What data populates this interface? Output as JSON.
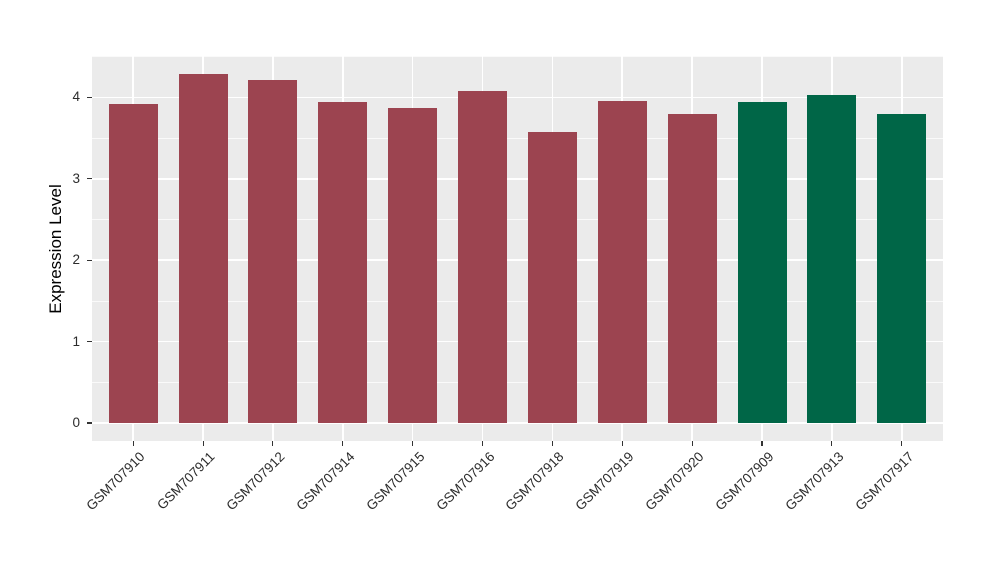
{
  "chart": {
    "ylabel": "Expression Level",
    "panel_bg": "#EBEBEB",
    "grid_color": "#FFFFFF",
    "tick_color": "#333333",
    "axis_text_color": "#2b2b2b"
  },
  "chart_data": {
    "type": "bar",
    "title": "",
    "xlabel": "",
    "ylabel": "Expression Level",
    "ylim": [
      -0.22,
      4.51
    ],
    "y_ticks": [
      0,
      1,
      2,
      3,
      4
    ],
    "y_minor_ticks": [
      0.5,
      1.5,
      2.5,
      3.5,
      4.5
    ],
    "grid": true,
    "legend_position": "none",
    "categories": [
      "GSM707910",
      "GSM707911",
      "GSM707912",
      "GSM707914",
      "GSM707915",
      "GSM707916",
      "GSM707918",
      "GSM707919",
      "GSM707920",
      "GSM707909",
      "GSM707913",
      "GSM707917"
    ],
    "values": [
      3.92,
      4.29,
      4.21,
      3.94,
      3.87,
      4.08,
      3.58,
      3.95,
      3.8,
      3.94,
      4.03,
      3.79
    ],
    "groups": [
      "group1",
      "group1",
      "group1",
      "group1",
      "group1",
      "group1",
      "group1",
      "group1",
      "group1",
      "group2",
      "group2",
      "group2"
    ],
    "group_colors": {
      "group1": "#9C4450",
      "group2": "#006647"
    }
  }
}
